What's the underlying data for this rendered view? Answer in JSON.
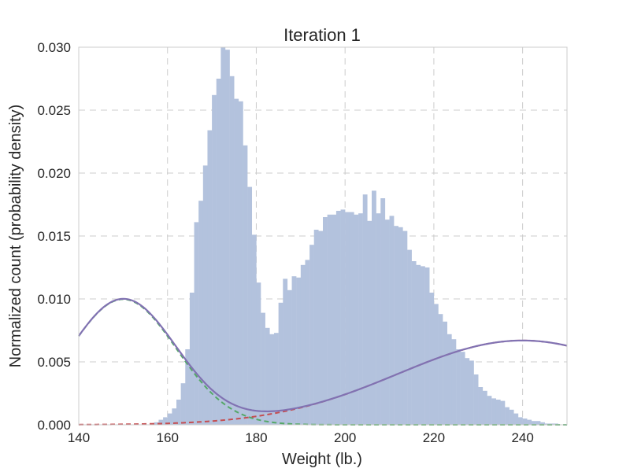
{
  "chart_data": {
    "type": "bar",
    "title": "Iteration 1",
    "xlabel": "Weight (lb.)",
    "ylabel": "Normalized count (probability density)",
    "xlim": [
      140,
      250
    ],
    "ylim": [
      0,
      0.03
    ],
    "xticks": [
      140,
      160,
      180,
      200,
      220,
      240
    ],
    "xtick_labels": [
      "140",
      "160",
      "180",
      "200",
      "220",
      "240"
    ],
    "yticks": [
      0,
      0.005,
      0.01,
      0.015,
      0.02,
      0.025,
      0.03
    ],
    "ytick_labels": [
      "0.000",
      "0.005",
      "0.010",
      "0.015",
      "0.020",
      "0.025",
      "0.030"
    ],
    "grid": true,
    "bar_color": "#b3c2dd",
    "histogram": {
      "bin_width": 1,
      "bin_start": 156,
      "densities": [
        0.0001,
        0.0002,
        0.0004,
        0.0006,
        0.0009,
        0.0013,
        0.002,
        0.0033,
        0.006,
        0.0105,
        0.0161,
        0.0178,
        0.0206,
        0.0234,
        0.0262,
        0.0275,
        0.0301,
        0.0298,
        0.0277,
        0.0259,
        0.0257,
        0.0222,
        0.0189,
        0.0151,
        0.0113,
        0.0089,
        0.0077,
        0.0072,
        0.0073,
        0.0097,
        0.0116,
        0.0107,
        0.0118,
        0.0117,
        0.0127,
        0.0131,
        0.0143,
        0.0155,
        0.0154,
        0.0165,
        0.0167,
        0.0167,
        0.017,
        0.0171,
        0.0169,
        0.0169,
        0.0167,
        0.0168,
        0.0183,
        0.0162,
        0.0186,
        0.0168,
        0.018,
        0.0163,
        0.0166,
        0.0158,
        0.0157,
        0.0154,
        0.0139,
        0.013,
        0.0127,
        0.0126,
        0.0125,
        0.0105,
        0.0096,
        0.0088,
        0.0082,
        0.0072,
        0.0068,
        0.006,
        0.0058,
        0.0053,
        0.0051,
        0.004,
        0.003,
        0.0027,
        0.0023,
        0.0021,
        0.002,
        0.0019,
        0.0014,
        0.0012,
        0.0009,
        0.0006,
        0.0005,
        0.0004,
        0.0003,
        0.0003,
        0.0002,
        0.0001,
        0.0001,
        0.0001
      ]
    },
    "series": [
      {
        "style": "dashed",
        "color": "#55a868",
        "components": [
          {
            "mean": 150,
            "sd": 12,
            "weight": 0.3
          }
        ]
      },
      {
        "style": "dashed",
        "color": "#c44e52",
        "components": [
          {
            "mean": 240,
            "sd": 28,
            "weight": 0.47
          }
        ]
      },
      {
        "style": "solid",
        "color": "#8172b2",
        "components": [
          {
            "mean": 150,
            "sd": 12,
            "weight": 0.3
          },
          {
            "mean": 240,
            "sd": 28,
            "weight": 0.47
          }
        ]
      }
    ]
  }
}
